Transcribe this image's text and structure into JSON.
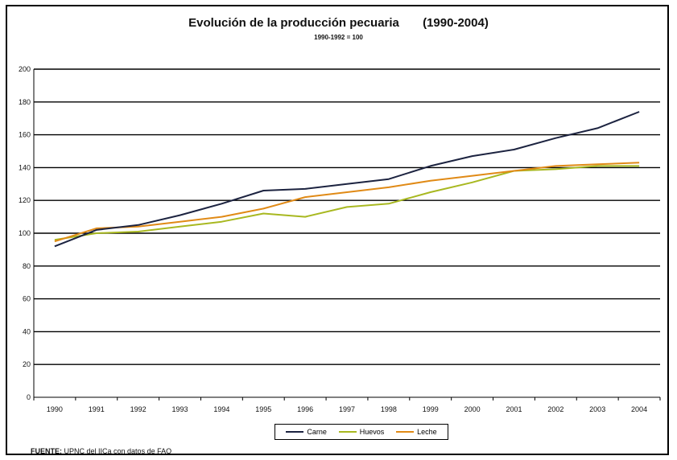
{
  "chart_data": {
    "type": "line",
    "title": "Evolución de la producción pecuaria",
    "title_period": "(1990-2004)",
    "subtitle": "1990-1992 = 100",
    "categories": [
      "1990",
      "1991",
      "1992",
      "1993",
      "1994",
      "1995",
      "1996",
      "1997",
      "1998",
      "1999",
      "2000",
      "2001",
      "2002",
      "2003",
      "2004"
    ],
    "ylim": [
      0,
      200
    ],
    "yticks": [
      0,
      20,
      40,
      60,
      80,
      100,
      120,
      140,
      160,
      180,
      200
    ],
    "grid": true,
    "legend_position": "bottom-center",
    "series": [
      {
        "name": "Carne",
        "color": "#1c2340",
        "values": [
          92,
          102,
          105,
          111,
          118,
          126,
          127,
          130,
          133,
          141,
          147,
          151,
          158,
          164,
          174
        ]
      },
      {
        "name": "Huevos",
        "color": "#a8b820",
        "values": [
          96,
          100,
          101,
          104,
          107,
          112,
          110,
          116,
          118,
          125,
          131,
          138,
          139,
          141,
          141
        ]
      },
      {
        "name": "Leche",
        "color": "#e08a16",
        "values": [
          95,
          103,
          104,
          107,
          110,
          115,
          122,
          125,
          128,
          132,
          135,
          138,
          141,
          142,
          143
        ]
      }
    ]
  },
  "source": {
    "label": "FUENTE:",
    "text": "UPNC del IICa con datos de FAO"
  }
}
